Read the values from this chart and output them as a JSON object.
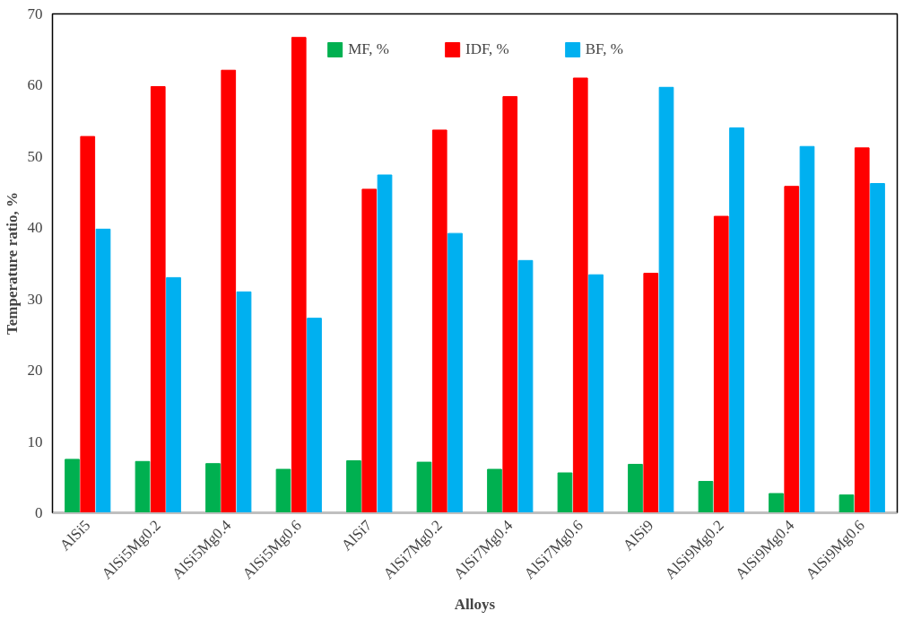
{
  "chart_data": {
    "type": "bar",
    "xlabel": "Alloys",
    "ylabel": "Temperature ratio, %",
    "categories": [
      "AlSi5",
      "AlSi5Mg0.2",
      "AlSi5Mg0.4",
      "AlSi5Mg0.6",
      "AlSi7",
      "AlSi7Mg0.2",
      "AlSi7Mg0.4",
      "AlSi7Mg0.6",
      "AlSi9",
      "AlSi9Mg0.2",
      "AlSi9Mg0.4",
      "AlSi9Mg0.6"
    ],
    "series": [
      {
        "name": "MF, %",
        "color": "#00b050",
        "values": [
          7.5,
          7.2,
          6.9,
          6.1,
          7.3,
          7.1,
          6.1,
          5.6,
          6.8,
          4.4,
          2.7,
          2.5
        ]
      },
      {
        "name": "IDF, %",
        "color": "#ff0000",
        "values": [
          52.8,
          59.8,
          62.1,
          66.7,
          45.4,
          53.7,
          58.4,
          61.0,
          33.6,
          41.6,
          45.8,
          51.2
        ]
      },
      {
        "name": "BF, %",
        "color": "#00b0f0",
        "values": [
          39.8,
          33.0,
          31.0,
          27.3,
          47.4,
          39.2,
          35.4,
          33.4,
          59.7,
          54.0,
          51.4,
          46.2
        ]
      }
    ],
    "ylim": [
      0,
      70
    ],
    "yticks": [
      0,
      10,
      20,
      30,
      40,
      50,
      60,
      70
    ],
    "grid": false,
    "legend": "top"
  }
}
